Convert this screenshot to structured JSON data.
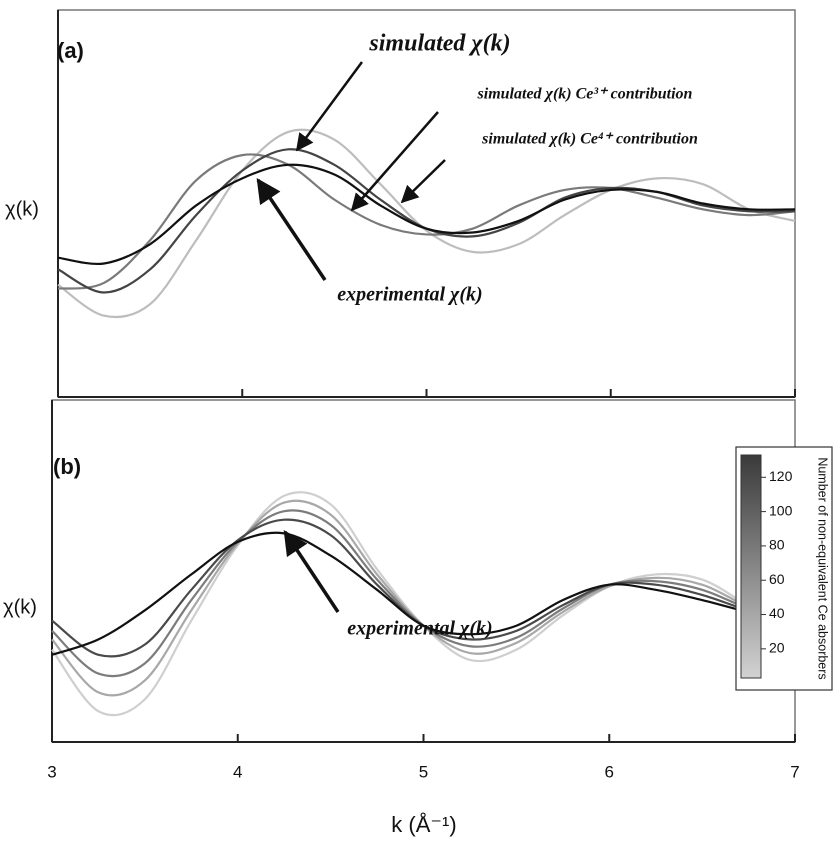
{
  "chart_data": [
    {
      "type": "line",
      "panel_label": "(a)",
      "y_label": "χ(k)",
      "x": [
        3,
        3.25,
        3.5,
        3.75,
        4,
        4.25,
        4.5,
        4.75,
        5,
        5.25,
        5.5,
        5.75,
        6,
        6.25,
        6.5,
        6.75,
        7
      ],
      "xlim": [
        3,
        7
      ],
      "xticks": [
        3,
        4,
        5,
        6,
        7
      ],
      "ylim": [
        -1,
        1
      ],
      "series": [
        {
          "color": "#bdbdbd",
          "values": [
            -0.42,
            -0.58,
            -0.52,
            -0.19,
            0.17,
            0.37,
            0.33,
            0.1,
            -0.14,
            -0.25,
            -0.21,
            -0.06,
            0.07,
            0.13,
            0.1,
            -0.03,
            -0.09
          ]
        },
        {
          "color": "#7a7a7a",
          "values": [
            -0.44,
            -0.41,
            -0.19,
            0.12,
            0.25,
            0.2,
            0.02,
            -0.11,
            -0.16,
            -0.13,
            -0.01,
            0.07,
            0.08,
            0.03,
            -0.03,
            -0.06,
            -0.04
          ]
        },
        {
          "color": "#444444",
          "values": [
            -0.34,
            -0.46,
            -0.34,
            -0.06,
            0.17,
            0.28,
            0.2,
            0.02,
            -0.13,
            -0.17,
            -0.1,
            0.03,
            0.08,
            0.06,
            -0.01,
            -0.04,
            -0.04
          ]
        },
        {
          "color": "#111111",
          "values": [
            -0.28,
            -0.31,
            -0.21,
            -0.01,
            0.13,
            0.2,
            0.15,
            -0.01,
            -0.13,
            -0.15,
            -0.09,
            0.02,
            0.07,
            0.06,
            0.0,
            -0.03,
            -0.03
          ]
        }
      ],
      "annotations": [
        {
          "text": "simulated χ(k)"
        },
        {
          "text": "simulated χ(k) Ce³⁺ contribution"
        },
        {
          "text": "simulated χ(k) Ce⁴⁺ contribution"
        },
        {
          "text": "experimental χ(k)"
        }
      ]
    },
    {
      "type": "line",
      "panel_label": "(b)",
      "y_label": "χ(k)",
      "x_label": "k (Å⁻¹)",
      "x": [
        3,
        3.25,
        3.5,
        3.75,
        4,
        4.25,
        4.5,
        4.75,
        5,
        5.25,
        5.5,
        5.75,
        6,
        6.25,
        6.5,
        6.75,
        7
      ],
      "xlim": [
        3,
        7
      ],
      "xticks": [
        3,
        4,
        5,
        6,
        7
      ],
      "ylim": [
        -1,
        1
      ],
      "series": [
        {
          "color": "#cfcfcf",
          "values": [
            -0.46,
            -0.82,
            -0.75,
            -0.29,
            0.15,
            0.44,
            0.39,
            0.01,
            -0.32,
            -0.52,
            -0.46,
            -0.26,
            -0.09,
            -0.02,
            -0.05,
            -0.2,
            -0.32
          ]
        },
        {
          "color": "#a8a8a8",
          "values": [
            -0.4,
            -0.71,
            -0.64,
            -0.23,
            0.16,
            0.4,
            0.33,
            -0.02,
            -0.32,
            -0.48,
            -0.42,
            -0.24,
            -0.09,
            -0.04,
            -0.08,
            -0.21,
            -0.31
          ]
        },
        {
          "color": "#7c7c7c",
          "values": [
            -0.35,
            -0.6,
            -0.54,
            -0.17,
            0.17,
            0.35,
            0.27,
            -0.05,
            -0.32,
            -0.44,
            -0.39,
            -0.22,
            -0.08,
            -0.06,
            -0.11,
            -0.22,
            -0.3
          ]
        },
        {
          "color": "#4a4a4a",
          "values": [
            -0.29,
            -0.49,
            -0.43,
            -0.11,
            0.18,
            0.3,
            0.21,
            -0.08,
            -0.32,
            -0.4,
            -0.35,
            -0.2,
            -0.08,
            -0.08,
            -0.14,
            -0.23,
            -0.29
          ]
        },
        {
          "color": "#111111",
          "values": [
            -0.49,
            -0.4,
            -0.23,
            -0.02,
            0.17,
            0.22,
            0.09,
            -0.11,
            -0.32,
            -0.37,
            -0.32,
            -0.17,
            -0.08,
            -0.11,
            -0.17,
            -0.24,
            -0.29
          ]
        }
      ],
      "annotations": [
        {
          "text": "experimental χ(k)"
        }
      ],
      "colorbar": {
        "label": "Number of non-equivalent Ce absorbers",
        "lim": [
          3,
          133
        ],
        "ticks": [
          20,
          40,
          60,
          80,
          100,
          120
        ],
        "colors": [
          "#d2d2d2",
          "#3a3a3a"
        ]
      }
    }
  ]
}
